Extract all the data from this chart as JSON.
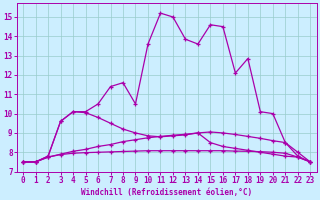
{
  "xlabel": "Windchill (Refroidissement éolien,°C)",
  "xlim": [
    -0.5,
    23.5
  ],
  "ylim": [
    7.0,
    15.7
  ],
  "yticks": [
    7,
    8,
    9,
    10,
    11,
    12,
    13,
    14,
    15
  ],
  "xticks": [
    0,
    1,
    2,
    3,
    4,
    5,
    6,
    7,
    8,
    9,
    10,
    11,
    12,
    13,
    14,
    15,
    16,
    17,
    18,
    19,
    20,
    21,
    22,
    23
  ],
  "background_color": "#cceeff",
  "line_color": "#aa00aa",
  "grid_color": "#99cccc",
  "s1": [
    7.5,
    7.5,
    7.8,
    9.6,
    10.1,
    10.1,
    10.5,
    11.4,
    11.6,
    10.5,
    13.6,
    15.2,
    15.0,
    13.85,
    13.6,
    14.6,
    14.5,
    12.1,
    12.85,
    10.1,
    10.0,
    8.5,
    7.8,
    7.5
  ],
  "s2": [
    7.5,
    7.5,
    7.8,
    9.6,
    10.1,
    10.05,
    9.8,
    9.5,
    9.2,
    9.0,
    8.85,
    8.8,
    8.85,
    8.9,
    9.0,
    8.5,
    8.3,
    8.2,
    8.1,
    8.0,
    7.9,
    7.8,
    7.75,
    7.5
  ],
  "s3": [
    7.5,
    7.5,
    7.75,
    7.9,
    8.05,
    8.15,
    8.3,
    8.4,
    8.55,
    8.65,
    8.75,
    8.82,
    8.88,
    8.93,
    9.0,
    9.05,
    9.0,
    8.92,
    8.82,
    8.72,
    8.6,
    8.5,
    8.0,
    7.5
  ],
  "s4": [
    7.5,
    7.5,
    7.75,
    7.88,
    7.95,
    7.98,
    8.0,
    8.02,
    8.04,
    8.06,
    8.08,
    8.08,
    8.08,
    8.08,
    8.08,
    8.08,
    8.08,
    8.06,
    8.05,
    8.03,
    8.0,
    7.95,
    7.75,
    7.5
  ]
}
